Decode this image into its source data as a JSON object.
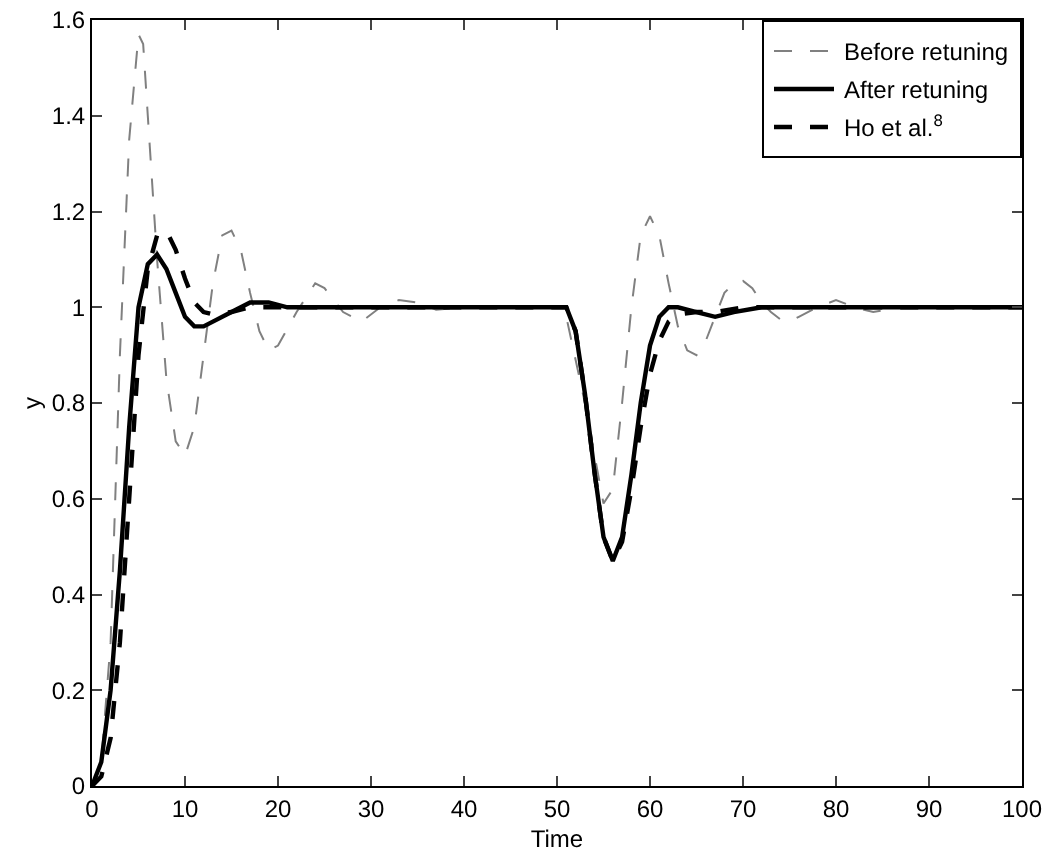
{
  "chart_data": {
    "type": "line",
    "xlabel": "Time",
    "ylabel": "y",
    "xlim": [
      0,
      100
    ],
    "ylim": [
      0,
      1.6
    ],
    "xticks": [
      0,
      10,
      20,
      30,
      40,
      50,
      60,
      70,
      80,
      90,
      100
    ],
    "yticks": [
      0,
      0.2,
      0.4,
      0.6,
      0.8,
      1,
      1.2,
      1.4,
      1.6
    ],
    "grid": false,
    "legend": "top right",
    "marker": "none",
    "series": [
      {
        "name": "Before retuning",
        "color": "#808080",
        "line_style": "dashed",
        "x": [
          0,
          1,
          2,
          3,
          4,
          5,
          5.5,
          6,
          7,
          8,
          9,
          10,
          11,
          12,
          13,
          14,
          15,
          16,
          17,
          18,
          19,
          20,
          22,
          24,
          25,
          27,
          29,
          31,
          33,
          35,
          37,
          40,
          50,
          51,
          53,
          55,
          56,
          57,
          58,
          59,
          60,
          61,
          62,
          63,
          64,
          65,
          66,
          67,
          68,
          69,
          70,
          71,
          72,
          73,
          74,
          75,
          76,
          78,
          80,
          82,
          84,
          87,
          90,
          100
        ],
        "values": [
          0,
          0.05,
          0.3,
          0.9,
          1.35,
          1.57,
          1.55,
          1.4,
          1.1,
          0.85,
          0.72,
          0.69,
          0.75,
          0.9,
          1.05,
          1.15,
          1.16,
          1.12,
          1.03,
          0.95,
          0.91,
          0.92,
          0.99,
          1.05,
          1.04,
          0.99,
          0.97,
          1,
          1.015,
          1.01,
          0.995,
          1,
          1,
          0.98,
          0.8,
          0.59,
          0.62,
          0.8,
          1,
          1.15,
          1.19,
          1.15,
          1.05,
          0.96,
          0.91,
          0.9,
          0.93,
          0.98,
          1.03,
          1.05,
          1.055,
          1.04,
          1.01,
          0.99,
          0.975,
          0.97,
          0.98,
          1,
          1.015,
          1,
          0.99,
          1,
          1,
          1
        ]
      },
      {
        "name": "After retuning",
        "color": "#000000",
        "line_style": "solid",
        "x": [
          0,
          1,
          2,
          3,
          4,
          5,
          6,
          7,
          8,
          9,
          10,
          11,
          12,
          13,
          15,
          17,
          19,
          21,
          50,
          51,
          52,
          53,
          54,
          55,
          56,
          57,
          58,
          59,
          60,
          61,
          62,
          63,
          65,
          67,
          69,
          72,
          100
        ],
        "values": [
          0,
          0.05,
          0.2,
          0.45,
          0.75,
          1,
          1.09,
          1.11,
          1.08,
          1.03,
          0.98,
          0.96,
          0.96,
          0.97,
          0.99,
          1.01,
          1.01,
          1,
          1,
          1,
          0.95,
          0.82,
          0.66,
          0.52,
          0.47,
          0.52,
          0.65,
          0.8,
          0.92,
          0.98,
          1,
          1,
          0.99,
          0.98,
          0.99,
          1,
          1
        ]
      },
      {
        "name": "Ho et al.$^{8}$",
        "color": "#000000",
        "line_style": "dashed",
        "x": [
          0,
          1,
          2,
          3,
          4,
          5,
          6,
          7,
          8,
          9,
          10,
          11,
          12,
          13,
          15,
          17,
          50,
          51,
          52,
          53,
          54,
          55,
          56,
          57,
          58,
          59,
          60,
          61,
          62,
          63,
          65,
          67,
          70,
          100
        ],
        "values": [
          0,
          0.02,
          0.1,
          0.3,
          0.6,
          0.9,
          1.08,
          1.15,
          1.16,
          1.12,
          1.06,
          1.01,
          0.99,
          0.985,
          0.99,
          1,
          1,
          1,
          0.95,
          0.82,
          0.66,
          0.52,
          0.47,
          0.51,
          0.62,
          0.75,
          0.86,
          0.93,
          0.97,
          0.985,
          0.99,
          0.99,
          1,
          1
        ]
      }
    ]
  }
}
